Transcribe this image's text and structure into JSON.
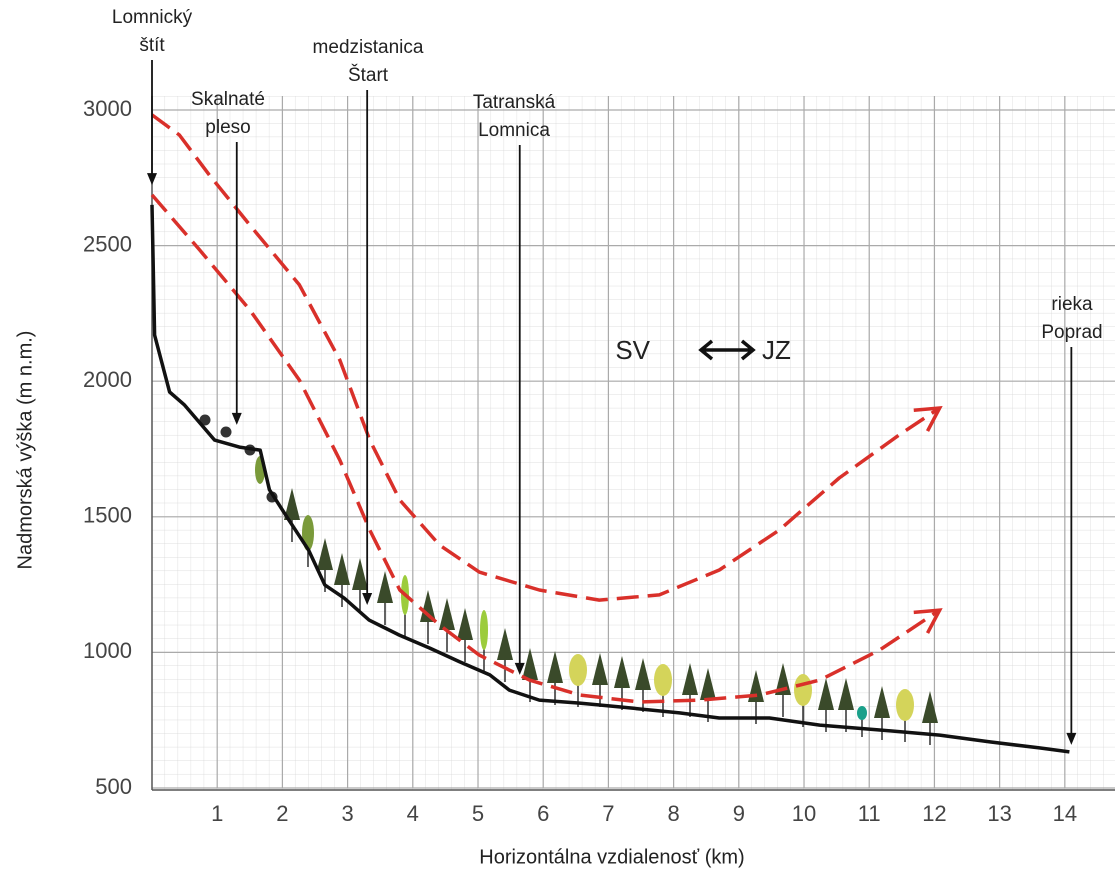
{
  "chart_data": {
    "type": "line",
    "x_label": "Horizontálna vzdialenosť (km)",
    "y_label": "Nadmorská výška (m n.m.)",
    "xlim": [
      0,
      14.8
    ],
    "ylim": [
      500,
      3000
    ],
    "xticks": [
      1,
      2,
      3,
      4,
      5,
      6,
      7,
      8,
      9,
      10,
      11,
      12,
      13,
      14
    ],
    "yticks": [
      500,
      1000,
      1500,
      2000,
      2500,
      3000
    ],
    "grid": true,
    "series": [
      {
        "color": "#111111",
        "dashed": false,
        "x": [
          0,
          0.04,
          0.27,
          0.5,
          0.96,
          1.34,
          1.66,
          1.8,
          2.1,
          2.4,
          2.65,
          2.95,
          3.33,
          3.79,
          4.26,
          4.72,
          5.18,
          5.48,
          5.94,
          6.56,
          7.17,
          8.09,
          8.7,
          9.47,
          10.24,
          11.16,
          12.08,
          12.85,
          13.61,
          14.07
        ],
        "values": [
          2650,
          2170,
          1960,
          1912,
          1783,
          1757,
          1746,
          1600,
          1488,
          1378,
          1249,
          1200,
          1119,
          1064,
          1016,
          965,
          917,
          861,
          824,
          813,
          799,
          777,
          758,
          758,
          732,
          714,
          695,
          670,
          648,
          633
        ]
      },
      {
        "color": "#d9302a",
        "dashed": true,
        "x": [
          0,
          0.42,
          0.88,
          1.5,
          2.26,
          2.88,
          3.34,
          3.8,
          4.41,
          5.02,
          5.94,
          6.86,
          7.78,
          8.7,
          9.62,
          10.54,
          11.46,
          12.08
        ],
        "values": [
          2982,
          2908,
          2760,
          2576,
          2355,
          2078,
          1783,
          1562,
          1396,
          1296,
          1230,
          1193,
          1212,
          1304,
          1451,
          1643,
          1802,
          1901
        ]
      },
      {
        "color": "#d9302a",
        "dashed": true,
        "x": [
          0,
          0.73,
          1.5,
          2.26,
          2.88,
          3.34,
          3.8,
          4.41,
          5.02,
          5.79,
          6.56,
          7.48,
          8.4,
          9.32,
          10.24,
          11.16,
          12.08
        ],
        "values": [
          2687,
          2484,
          2263,
          2004,
          1709,
          1451,
          1230,
          1101,
          990,
          898,
          843,
          817,
          824,
          843,
          898,
          1009,
          1156
        ]
      }
    ],
    "annotations": [
      {
        "lines": [
          "Lomnický",
          "štít"
        ],
        "x": 0,
        "y": 2723
      },
      {
        "lines": [
          "Skalnaté",
          "pleso"
        ],
        "x": 1.3,
        "y": 1839
      },
      {
        "lines": [
          "medzistanica",
          "Štart"
        ],
        "x": 3.3,
        "y": 1175
      },
      {
        "lines": [
          "Tatranská",
          "Lomnica"
        ],
        "x": 5.64,
        "y": 917
      },
      {
        "lines": [
          "rieka",
          "Poprad"
        ],
        "x": 14.1,
        "y": 659
      }
    ],
    "direction": {
      "left": "SV",
      "right": "JZ"
    }
  }
}
